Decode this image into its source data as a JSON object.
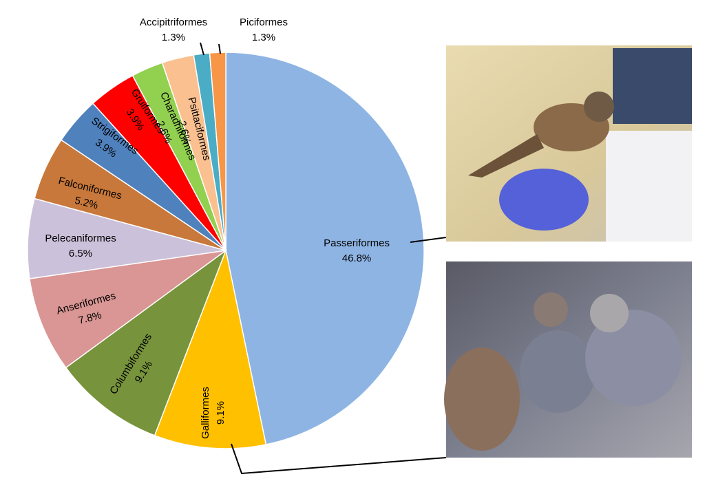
{
  "chart_data": {
    "type": "pie",
    "categories": [
      "Passeriformes",
      "Galliformes",
      "Columbiformes",
      "Anseriformes",
      "Pelecaniformes",
      "Falconiformes",
      "Strigiformes",
      "Gruiformes",
      "Charadriiformes",
      "Psittaciformes",
      "Accipitriformes",
      "Piciformes"
    ],
    "values": [
      46.8,
      9.1,
      9.1,
      7.8,
      6.5,
      5.2,
      3.9,
      3.9,
      2.6,
      2.6,
      1.3,
      1.3
    ],
    "value_labels": [
      "46.8%",
      "9.1%",
      "9.1%",
      "7.8%",
      "6.5%",
      "5.2%",
      "3.9%",
      "3.9%",
      "2.6%",
      "2.6%",
      "1.3%",
      "1.3%"
    ],
    "colors": [
      "#8eb4e3",
      "#ffc000",
      "#77933c",
      "#d99694",
      "#ccc1da",
      "#c8783a",
      "#4f81bd",
      "#ff0000",
      "#92d050",
      "#fac090",
      "#4bacc6",
      "#f79646"
    ]
  }
}
